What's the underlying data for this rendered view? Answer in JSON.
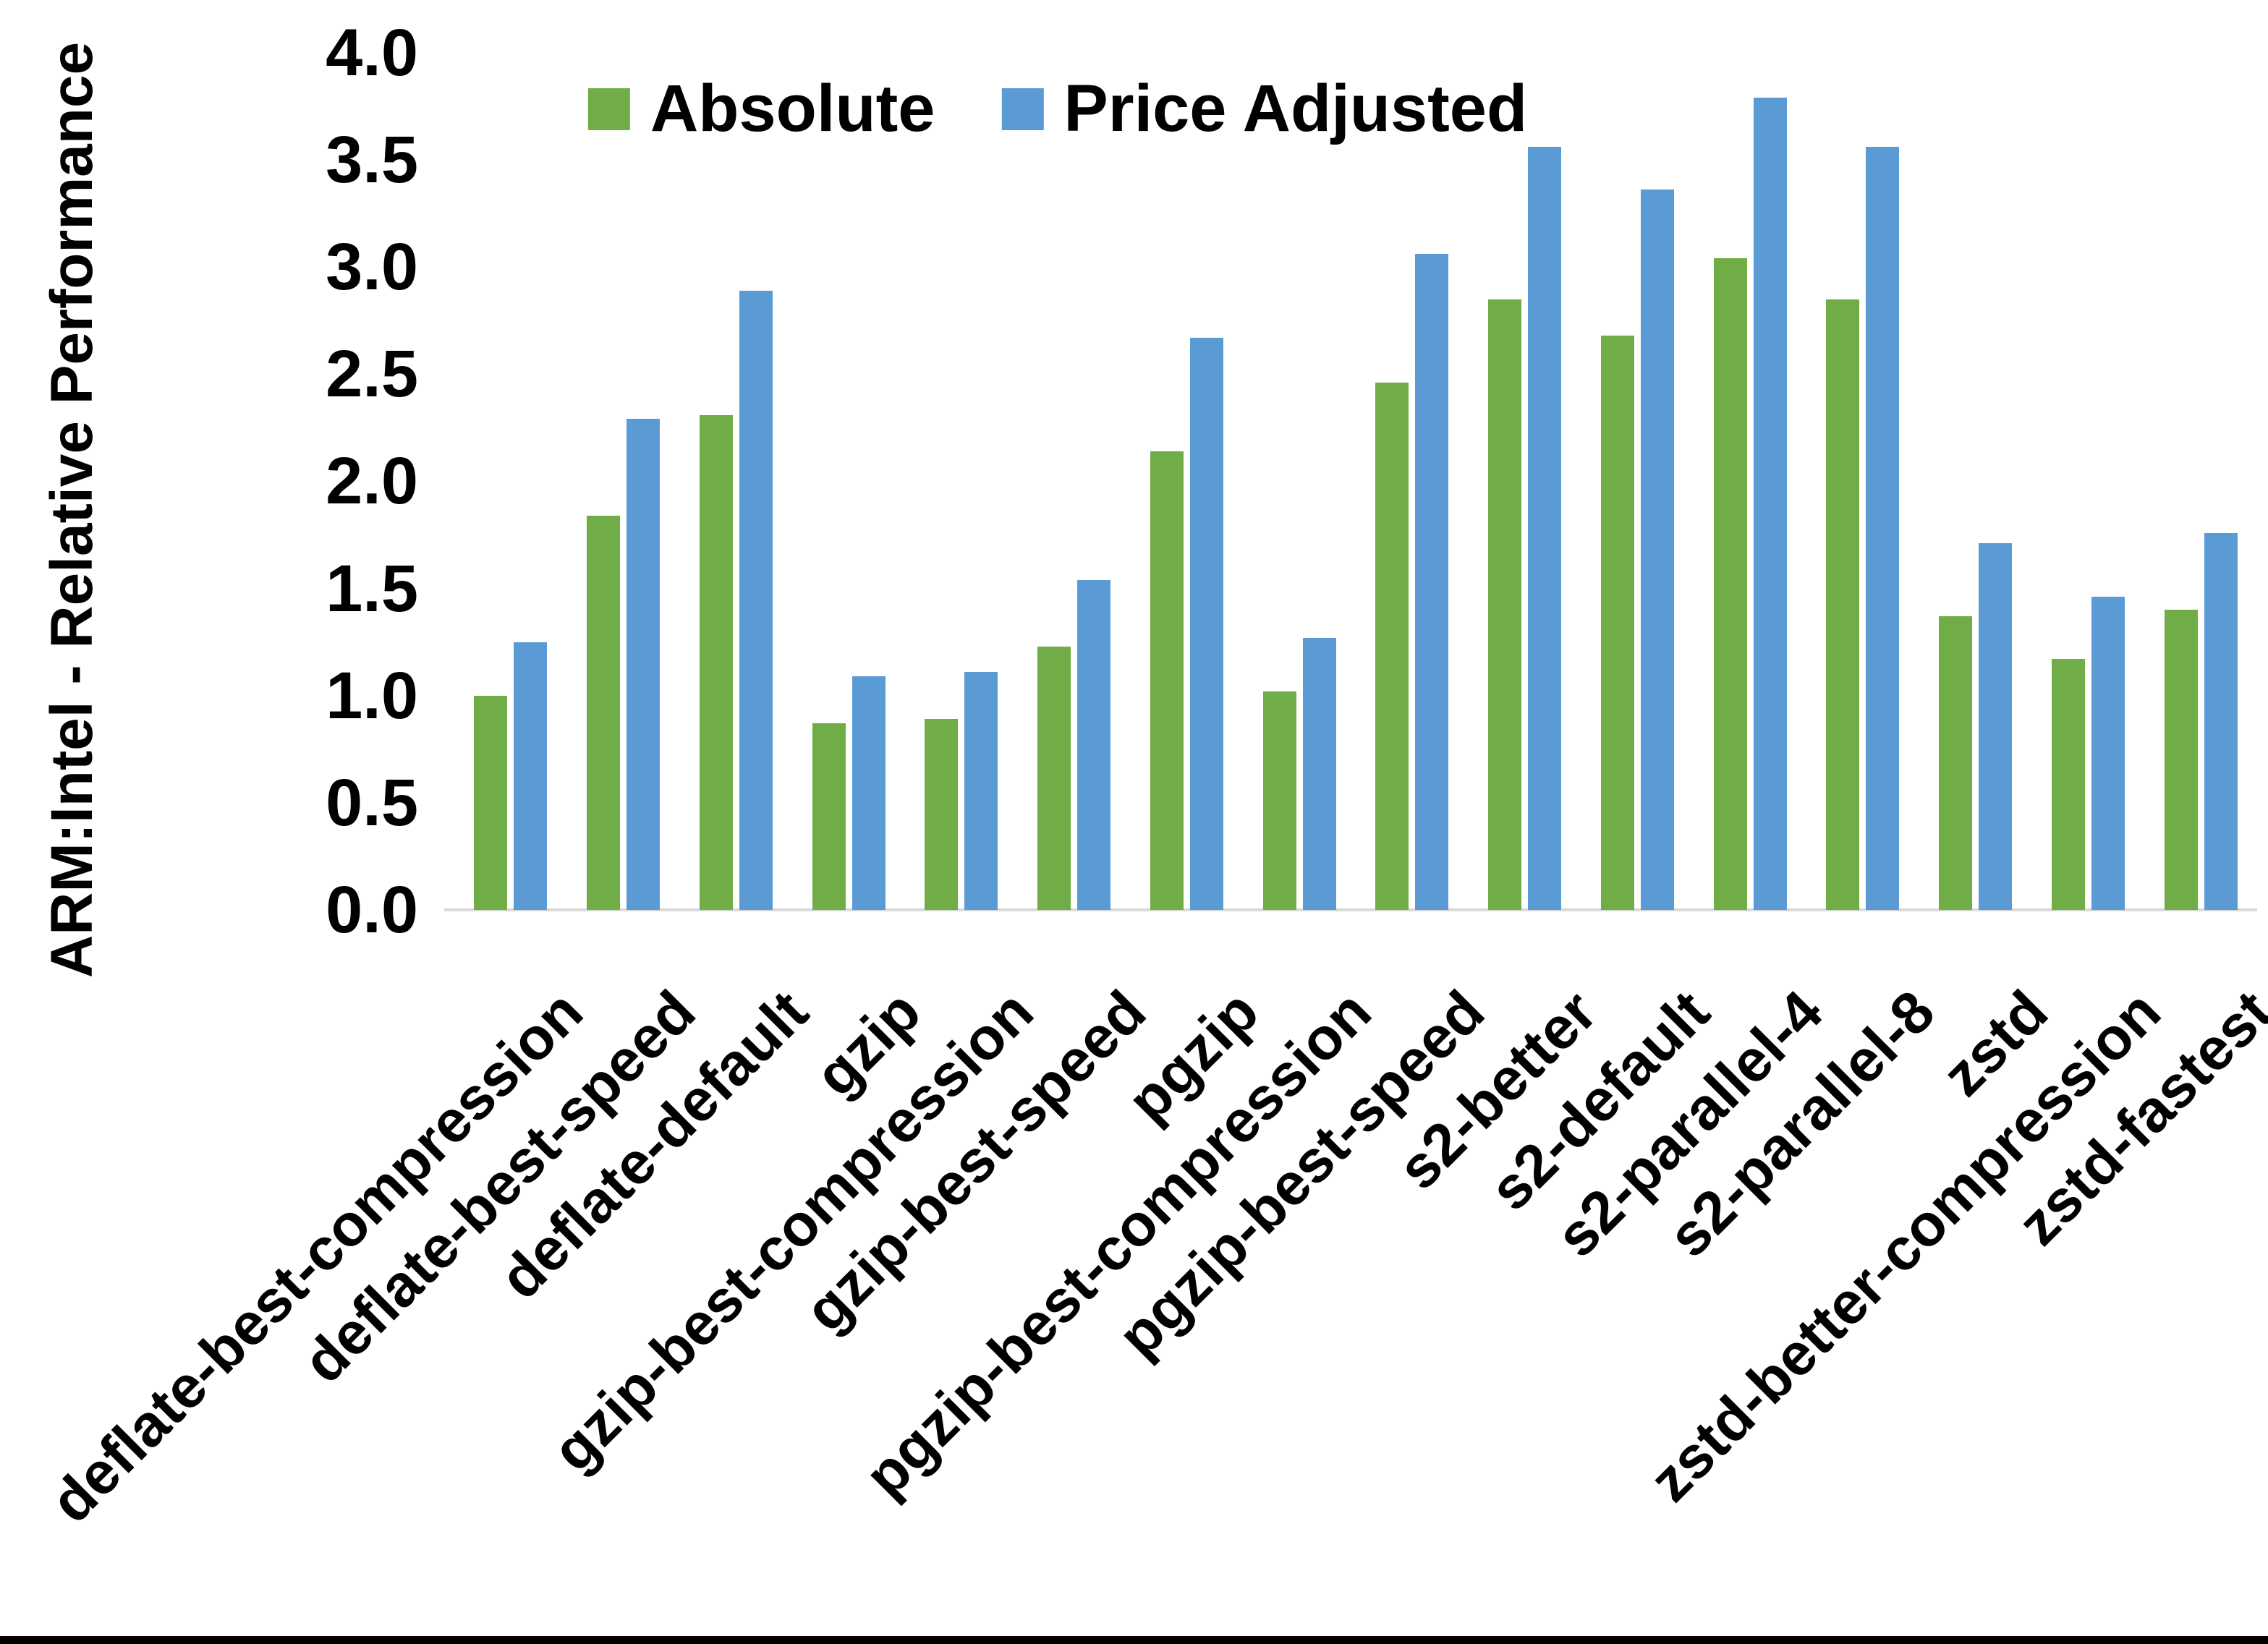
{
  "chart_data": {
    "type": "bar",
    "title": "",
    "xlabel": "",
    "ylabel": "ARM:Intel - Relative Performance",
    "ylim": [
      0,
      4.05
    ],
    "ytick_step": 0.5,
    "yticks": [
      0.0,
      0.5,
      1.0,
      1.5,
      2.0,
      2.5,
      3.0,
      3.5,
      4.0
    ],
    "grid": false,
    "legend_position": "top-center",
    "baseline_color": "#d9d9d9",
    "categories": [
      "deflate-best-compression",
      "deflate-best-speed",
      "deflate-default",
      "gzip",
      "gzip-best-compression",
      "gzip-best-speed",
      "pgzip",
      "pgzip-best-compression",
      "pgzip-best-speed",
      "s2-better",
      "s2-default",
      "s2-parallel-4",
      "s2-parallel-8",
      "zstd",
      "zstd-better-compression",
      "zstd-fastest"
    ],
    "series": [
      {
        "name": "Absolute",
        "color": "#70AD47",
        "values": [
          1.0,
          1.84,
          2.31,
          0.87,
          0.89,
          1.23,
          2.14,
          1.02,
          2.46,
          2.85,
          2.68,
          3.04,
          2.85,
          1.37,
          1.17,
          1.4
        ]
      },
      {
        "name": "Price Adjusted",
        "color": "#5B9BD5",
        "values": [
          1.25,
          2.29,
          2.89,
          1.09,
          1.11,
          1.54,
          2.67,
          1.27,
          3.06,
          3.56,
          3.36,
          3.79,
          3.56,
          1.71,
          1.46,
          1.76
        ]
      }
    ]
  }
}
